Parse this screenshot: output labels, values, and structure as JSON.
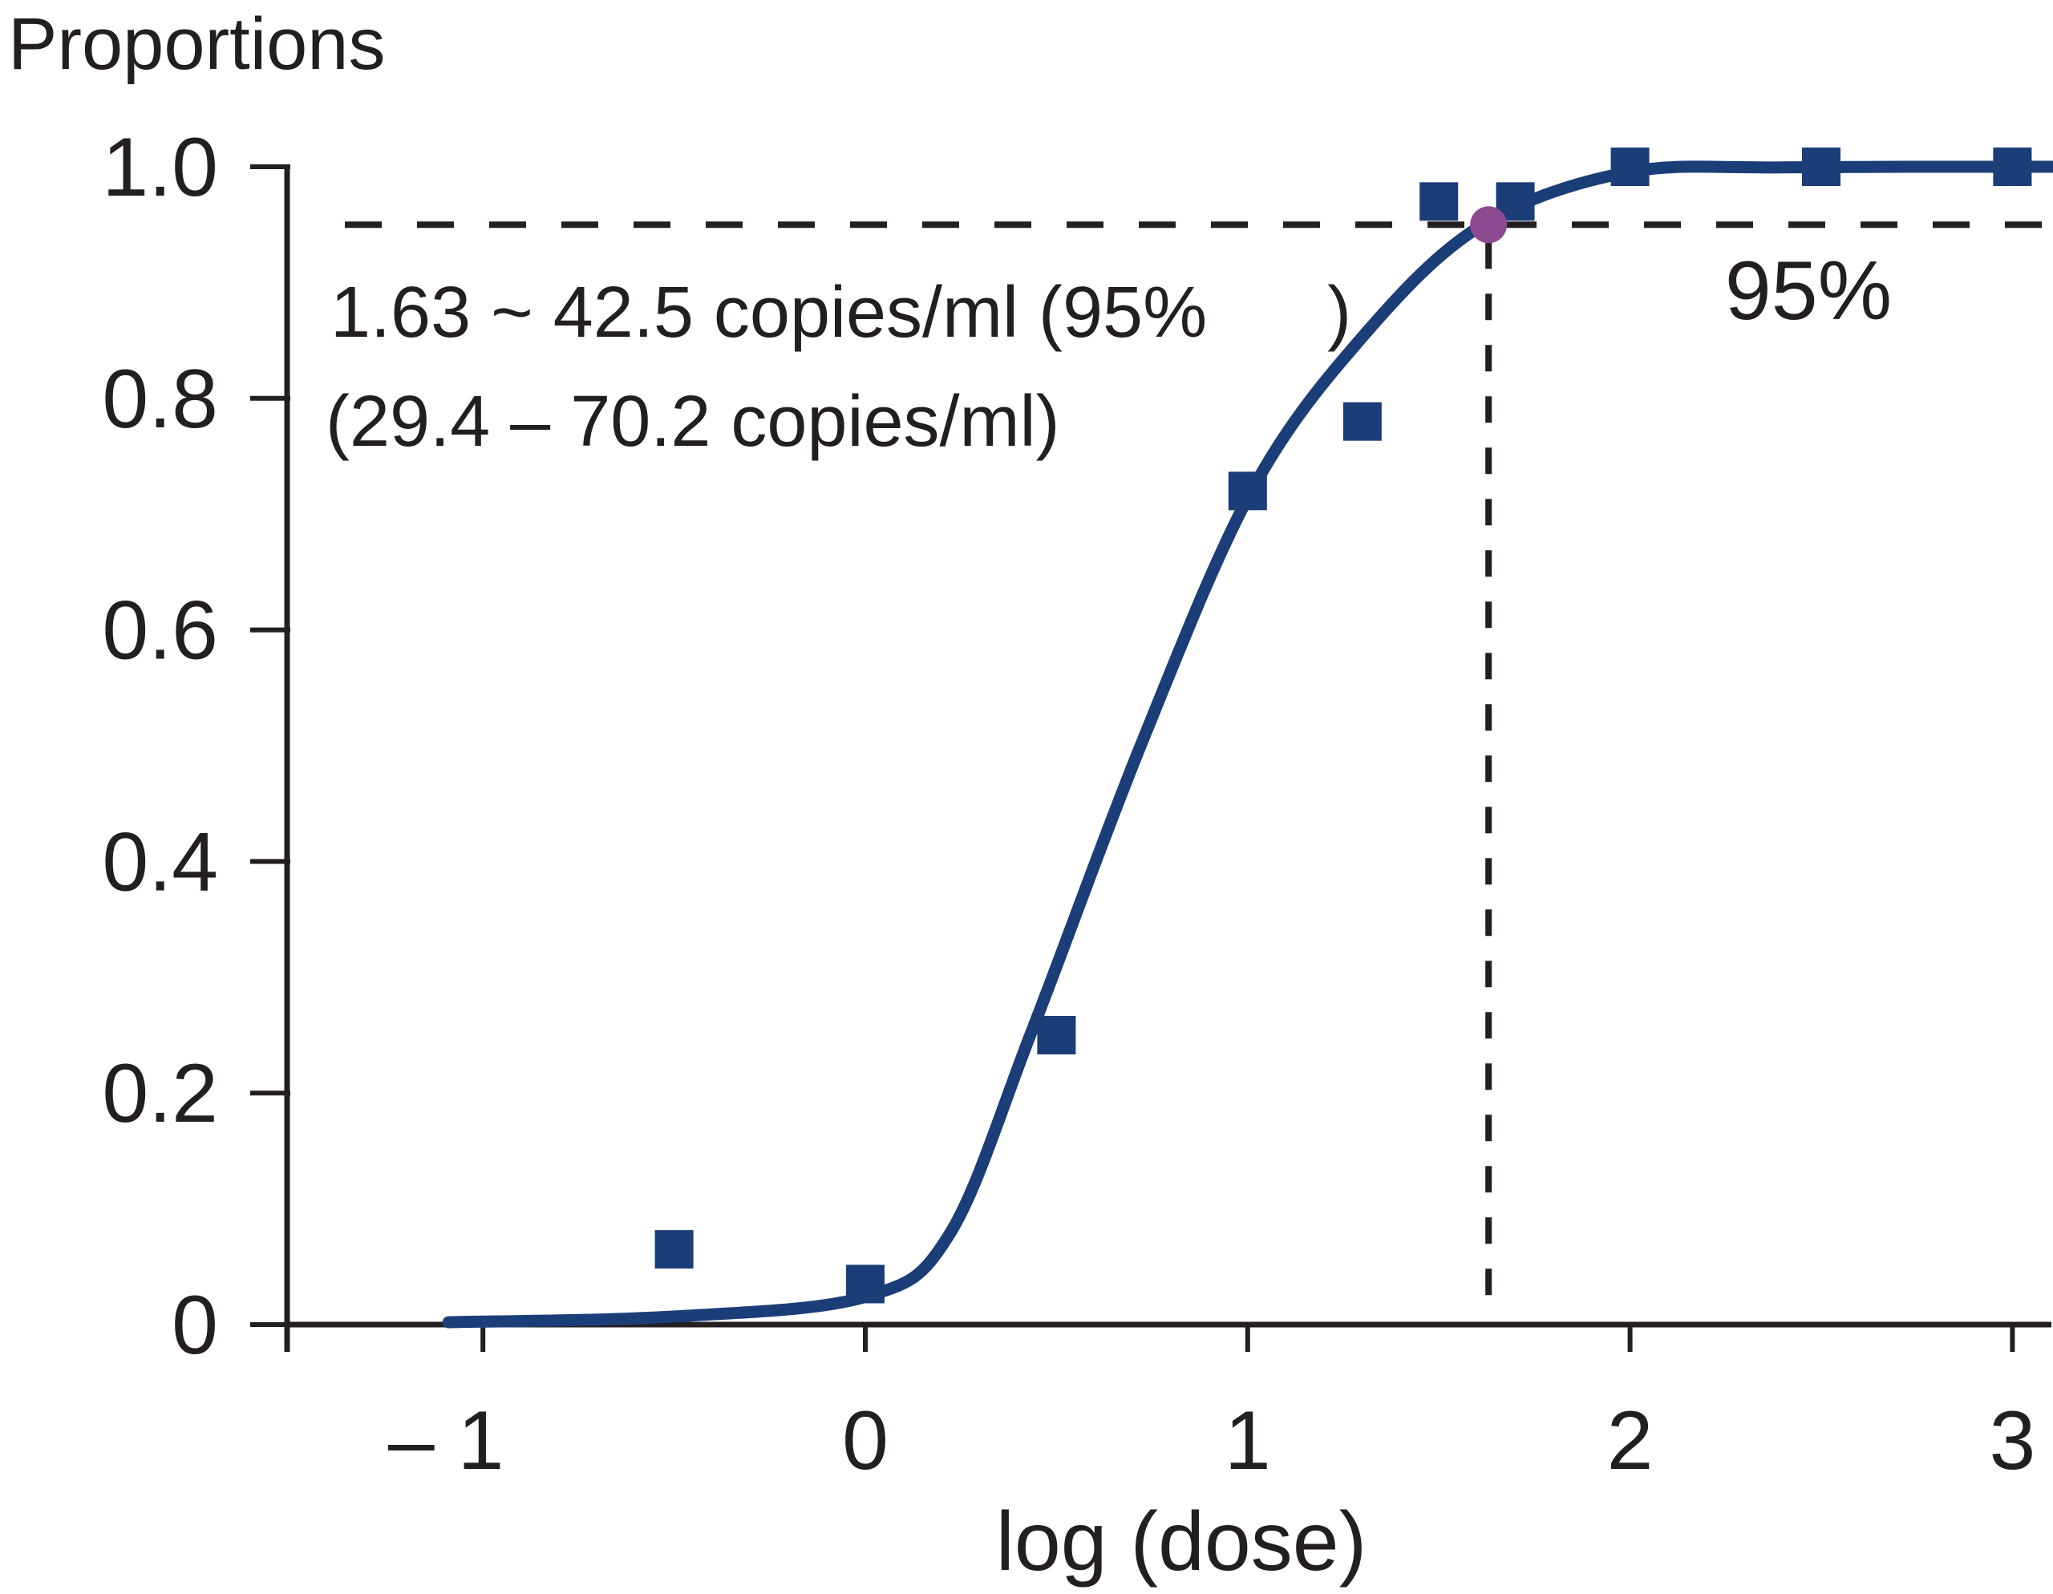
{
  "title": "Proportions",
  "annotation": {
    "line1": "1.63 ~ 42.5 copies/ml (95%      )",
    "line2": "(29.4 – 70.2 copies/ml)"
  },
  "labels": {
    "threshold": "95%",
    "x_axis": "log (dose)"
  },
  "colors": {
    "series_navy": "#1b3d78",
    "lod_purple": "#8c4a90",
    "axis_black": "#231f20",
    "background": "#ffffff"
  },
  "chart_data": {
    "type": "line",
    "title": "Proportions",
    "xlabel": "log (dose)",
    "ylabel": "Proportions",
    "xlim": [
      -1.5,
      3.1
    ],
    "ylim": [
      0,
      1.0
    ],
    "grid": false,
    "x_ticks": [
      -1,
      0,
      1,
      2,
      3
    ],
    "x_tick_labels": [
      "– 1",
      "0",
      "1",
      "2",
      "3"
    ],
    "y_ticks": [
      0,
      0.2,
      0.4,
      0.6,
      0.8,
      1.0
    ],
    "y_tick_labels": [
      "0",
      "0.2",
      "0.4",
      "0.6",
      "0.8",
      "1.0"
    ],
    "series": [
      {
        "name": "observed-proportions",
        "marker": "square",
        "color": "#1b3d78",
        "points": [
          [
            -0.5,
            0.065
          ],
          [
            0,
            0.035
          ],
          [
            0.5,
            0.25
          ],
          [
            1,
            0.72
          ],
          [
            1.3,
            0.78
          ],
          [
            1.5,
            0.97
          ],
          [
            1.7,
            0.97
          ],
          [
            2,
            1.0
          ],
          [
            2.5,
            1.0
          ],
          [
            3,
            1.0
          ]
        ]
      },
      {
        "name": "fitted-dose-response-curve",
        "marker": "none",
        "color": "#1b3d78",
        "points": [
          [
            -1.09,
            0.002
          ],
          [
            -0.5,
            0.007
          ],
          [
            0,
            0.024
          ],
          [
            0.22,
            0.078
          ],
          [
            0.436,
            0.254
          ],
          [
            0.72,
            0.5
          ],
          [
            1.01,
            0.72
          ],
          [
            1.3,
            0.853
          ],
          [
            1.61,
            0.949
          ],
          [
            1.99,
            0.995
          ],
          [
            2.4,
            0.9995
          ],
          [
            3.106,
            1.0
          ]
        ]
      },
      {
        "name": "lod-95-point",
        "marker": "circle",
        "color": "#8c4a90",
        "points": [
          [
            1.63,
            0.95
          ]
        ]
      }
    ],
    "reference_lines": {
      "horizontal_proportion": 0.95,
      "vertical_log_dose": 1.63
    },
    "annotations": {
      "lod_line1": "1.63 ~ 42.5 copies/ml (95%      )",
      "lod_line2": "(29.4 – 70.2 copies/ml)",
      "threshold_label": "95%"
    },
    "legend_position": "none"
  }
}
